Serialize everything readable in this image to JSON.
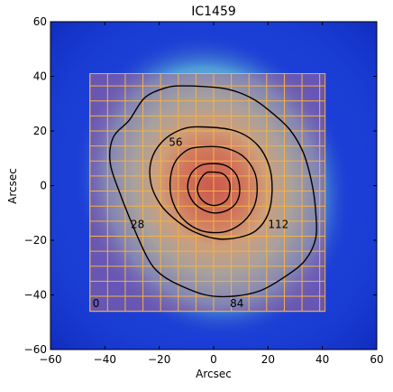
{
  "chart_data": {
    "type": "heatmap",
    "title": "IC1459",
    "xlabel": "Arcsec",
    "ylabel": "Arcsec",
    "xlim": [
      -60,
      60
    ],
    "ylim": [
      -60,
      60
    ],
    "x_ticks": [
      -60,
      -40,
      -20,
      0,
      20,
      40,
      60
    ],
    "y_ticks": [
      -60,
      -40,
      -20,
      0,
      20,
      40,
      60
    ],
    "x_tick_labels": [
      "−60",
      "−40",
      "−20",
      "0",
      "20",
      "40",
      "60"
    ],
    "y_tick_labels": [
      "−60",
      "−40",
      "−20",
      "0",
      "20",
      "40",
      "60"
    ],
    "colormap": [
      "#0000c8",
      "#2a3fd0",
      "#4f9bd6",
      "#9cd3a7",
      "#e8d060",
      "#f07a20",
      "#e04808"
    ],
    "background_color": "#1b3fd6",
    "field": {
      "x_range": [
        -45.5,
        41
      ],
      "y_range": [
        -46,
        41
      ],
      "grid_x_step": 6.5,
      "grid_y_step": 5.5,
      "grid_color": "#f3b246",
      "tint_color": "#b36e94",
      "tint_opacity": 0.5
    },
    "grid_labels": [
      {
        "text": "0",
        "x": -44.5,
        "y": -44.5
      },
      {
        "text": "28",
        "x": -30.5,
        "y": -15.5
      },
      {
        "text": "56",
        "x": -16.5,
        "y": 14.5
      },
      {
        "text": "84",
        "x": 6,
        "y": -44.5
      },
      {
        "text": "112",
        "x": 20,
        "y": -15.5
      }
    ],
    "contours": [
      {
        "level": "outer",
        "points": [
          [
            -11.5,
            36.5
          ],
          [
            4,
            35.5
          ],
          [
            14,
            32
          ],
          [
            21,
            27
          ],
          [
            28,
            20.5
          ],
          [
            33,
            12
          ],
          [
            36,
            1.5
          ],
          [
            37.5,
            -9
          ],
          [
            37.5,
            -19.5
          ],
          [
            33.5,
            -27.5
          ],
          [
            26,
            -33.5
          ],
          [
            17,
            -38.5
          ],
          [
            7,
            -40.5
          ],
          [
            -3,
            -40
          ],
          [
            -13.5,
            -36
          ],
          [
            -20,
            -32
          ],
          [
            -24,
            -27
          ],
          [
            -28.5,
            -17.5
          ],
          [
            -34,
            -4
          ],
          [
            -38,
            8
          ],
          [
            -37,
            17.5
          ],
          [
            -31,
            24
          ],
          [
            -25.5,
            32
          ],
          [
            -18.5,
            35.5
          ]
        ]
      },
      {
        "level": "middle",
        "points": [
          [
            -4.5,
            21.5
          ],
          [
            8,
            20
          ],
          [
            16,
            15
          ],
          [
            20.5,
            7
          ],
          [
            21.5,
            -2
          ],
          [
            20,
            -10.5
          ],
          [
            15.5,
            -16.5
          ],
          [
            9,
            -19
          ],
          [
            1.5,
            -19.5
          ],
          [
            -7,
            -17
          ],
          [
            -14,
            -12.5
          ],
          [
            -19.5,
            -7
          ],
          [
            -23,
            0.5
          ],
          [
            -23,
            9
          ],
          [
            -19,
            16
          ],
          [
            -12,
            20.5
          ]
        ]
      },
      {
        "level": "inner",
        "points": [
          [
            -6,
            14
          ],
          [
            3,
            14
          ],
          [
            10.5,
            11
          ],
          [
            15,
            5
          ],
          [
            16,
            -2
          ],
          [
            14.5,
            -8.5
          ],
          [
            10,
            -14
          ],
          [
            3.5,
            -17
          ],
          [
            -4.5,
            -16.5
          ],
          [
            -11,
            -12.5
          ],
          [
            -15,
            -6
          ],
          [
            -16,
            1
          ],
          [
            -14.5,
            8
          ],
          [
            -10.5,
            12.5
          ]
        ]
      },
      {
        "level": "core-outer",
        "points": [
          [
            -2,
            8
          ],
          [
            4,
            7.5
          ],
          [
            8,
            4.5
          ],
          [
            9.5,
            0
          ],
          [
            9,
            -5
          ],
          [
            6,
            -8.5
          ],
          [
            1,
            -10
          ],
          [
            -3.5,
            -9
          ],
          [
            -7.5,
            -6
          ],
          [
            -9.5,
            -1
          ],
          [
            -8.5,
            4
          ],
          [
            -5.5,
            7
          ]
        ]
      },
      {
        "level": "core-inner",
        "points": [
          [
            -1,
            5
          ],
          [
            3,
            4.5
          ],
          [
            5.5,
            2
          ],
          [
            6,
            -1.5
          ],
          [
            5,
            -5
          ],
          [
            2,
            -7
          ],
          [
            -1.5,
            -7
          ],
          [
            -4.5,
            -5
          ],
          [
            -6,
            -1.5
          ],
          [
            -5,
            2
          ],
          [
            -3,
            4.5
          ]
        ]
      }
    ]
  }
}
